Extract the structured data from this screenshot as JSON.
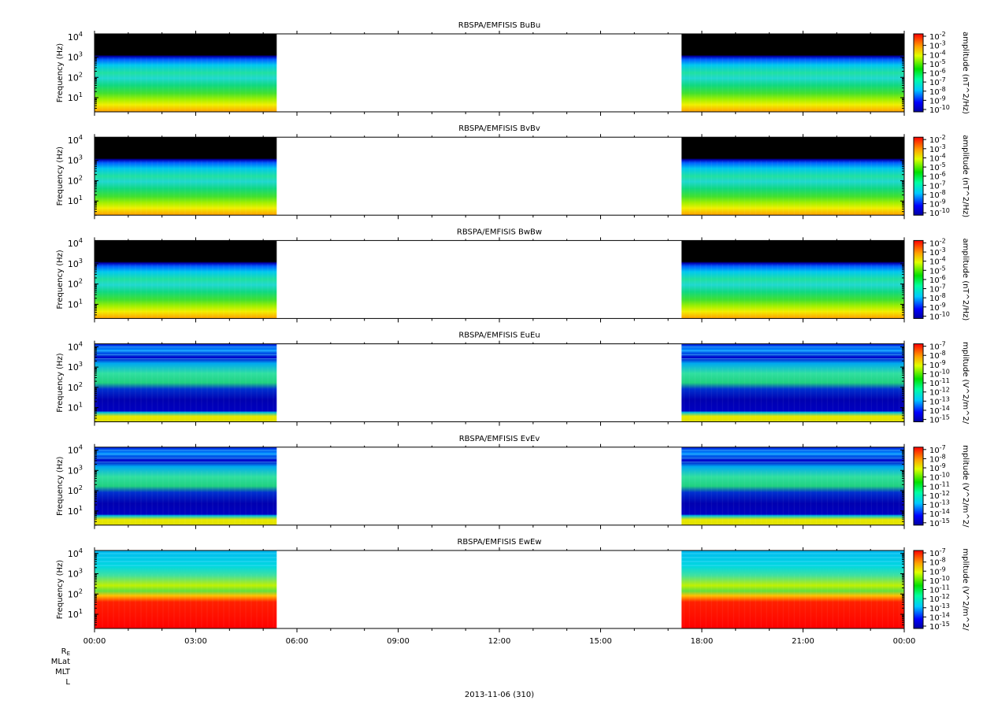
{
  "chart_data": [
    {
      "type": "heatmap",
      "title": "RBSPA/EMFISIS  BuBu",
      "ylabel": "Frequency (Hz)",
      "ytick_labels": [
        "10",
        "10",
        "10",
        "10"
      ],
      "ytick_exponents": [
        "1",
        "2",
        "3",
        "4"
      ],
      "colorbar_label": "amplitude (nT^2/Hz)",
      "colorbar_bases": [
        "10",
        "10",
        "10",
        "10",
        "10",
        "10",
        "10",
        "10",
        "10"
      ],
      "colorbar_exponents": [
        "-2",
        "-3",
        "-4",
        "-5",
        "-6",
        "-7",
        "-8",
        "-9",
        "-10"
      ],
      "kind": "B"
    },
    {
      "type": "heatmap",
      "title": "RBSPA/EMFISIS  BvBv",
      "ylabel": "Frequency (Hz)",
      "ytick_labels": [
        "10",
        "10",
        "10",
        "10"
      ],
      "ytick_exponents": [
        "1",
        "2",
        "3",
        "4"
      ],
      "colorbar_label": "amplitude (nT^2/Hz)",
      "colorbar_bases": [
        "10",
        "10",
        "10",
        "10",
        "10",
        "10",
        "10",
        "10",
        "10"
      ],
      "colorbar_exponents": [
        "-2",
        "-3",
        "-4",
        "-5",
        "-6",
        "-7",
        "-8",
        "-9",
        "-10"
      ],
      "kind": "B"
    },
    {
      "type": "heatmap",
      "title": "RBSPA/EMFISIS  BwBw",
      "ylabel": "Frequency (Hz)",
      "ytick_labels": [
        "10",
        "10",
        "10",
        "10"
      ],
      "ytick_exponents": [
        "1",
        "2",
        "3",
        "4"
      ],
      "colorbar_label": "amplitude (nT^2/Hz)",
      "colorbar_bases": [
        "10",
        "10",
        "10",
        "10",
        "10",
        "10",
        "10",
        "10",
        "10"
      ],
      "colorbar_exponents": [
        "-2",
        "-3",
        "-4",
        "-5",
        "-6",
        "-7",
        "-8",
        "-9",
        "-10"
      ],
      "kind": "B"
    },
    {
      "type": "heatmap",
      "title": "RBSPA/EMFISIS  EuEu",
      "ylabel": "Frequency (Hz)",
      "ytick_labels": [
        "10",
        "10",
        "10",
        "10"
      ],
      "ytick_exponents": [
        "1",
        "2",
        "3",
        "4"
      ],
      "colorbar_label": "mplitude (V^2/m^2/",
      "colorbar_bases": [
        "10",
        "10",
        "10",
        "10",
        "10",
        "10",
        "10",
        "10",
        "10"
      ],
      "colorbar_exponents": [
        "-7",
        "-8",
        "-9",
        "-10",
        "-11",
        "-12",
        "-13",
        "-14",
        "-15"
      ],
      "kind": "E"
    },
    {
      "type": "heatmap",
      "title": "RBSPA/EMFISIS  EvEv",
      "ylabel": "Frequency (Hz)",
      "ytick_labels": [
        "10",
        "10",
        "10",
        "10"
      ],
      "ytick_exponents": [
        "1",
        "2",
        "3",
        "4"
      ],
      "colorbar_label": "mplitude (V^2/m^2/",
      "colorbar_bases": [
        "10",
        "10",
        "10",
        "10",
        "10",
        "10",
        "10",
        "10",
        "10"
      ],
      "colorbar_exponents": [
        "-7",
        "-8",
        "-9",
        "-10",
        "-11",
        "-12",
        "-13",
        "-14",
        "-15"
      ],
      "kind": "E"
    },
    {
      "type": "heatmap",
      "title": "RBSPA/EMFISIS  EwEw",
      "ylabel": "Frequency (Hz)",
      "ytick_labels": [
        "10",
        "10",
        "10",
        "10"
      ],
      "ytick_exponents": [
        "1",
        "2",
        "3",
        "4"
      ],
      "colorbar_label": "mplitude (V^2/m^2/",
      "colorbar_bases": [
        "10",
        "10",
        "10",
        "10",
        "10",
        "10",
        "10",
        "10",
        "10"
      ],
      "colorbar_exponents": [
        "-7",
        "-8",
        "-9",
        "-10",
        "-11",
        "-12",
        "-13",
        "-14",
        "-15"
      ],
      "kind": "EW"
    }
  ],
  "x_axis": {
    "tick_labels": [
      "00:00",
      "03:00",
      "06:00",
      "09:00",
      "12:00",
      "15:00",
      "18:00",
      "21:00",
      "00:00"
    ],
    "range_hours": [
      0,
      24
    ],
    "data_intervals_hours": [
      [
        0,
        5.4
      ],
      [
        17.4,
        24
      ]
    ],
    "date_label": "2013-11-06 (310)"
  },
  "y_axis": {
    "scale": "log",
    "range_hz": [
      2,
      14000
    ]
  },
  "ephemeris_labels": {
    "re": "R",
    "re_sub": "E",
    "mlat": "MLat",
    "mlt": "MLT",
    "l": "L"
  }
}
